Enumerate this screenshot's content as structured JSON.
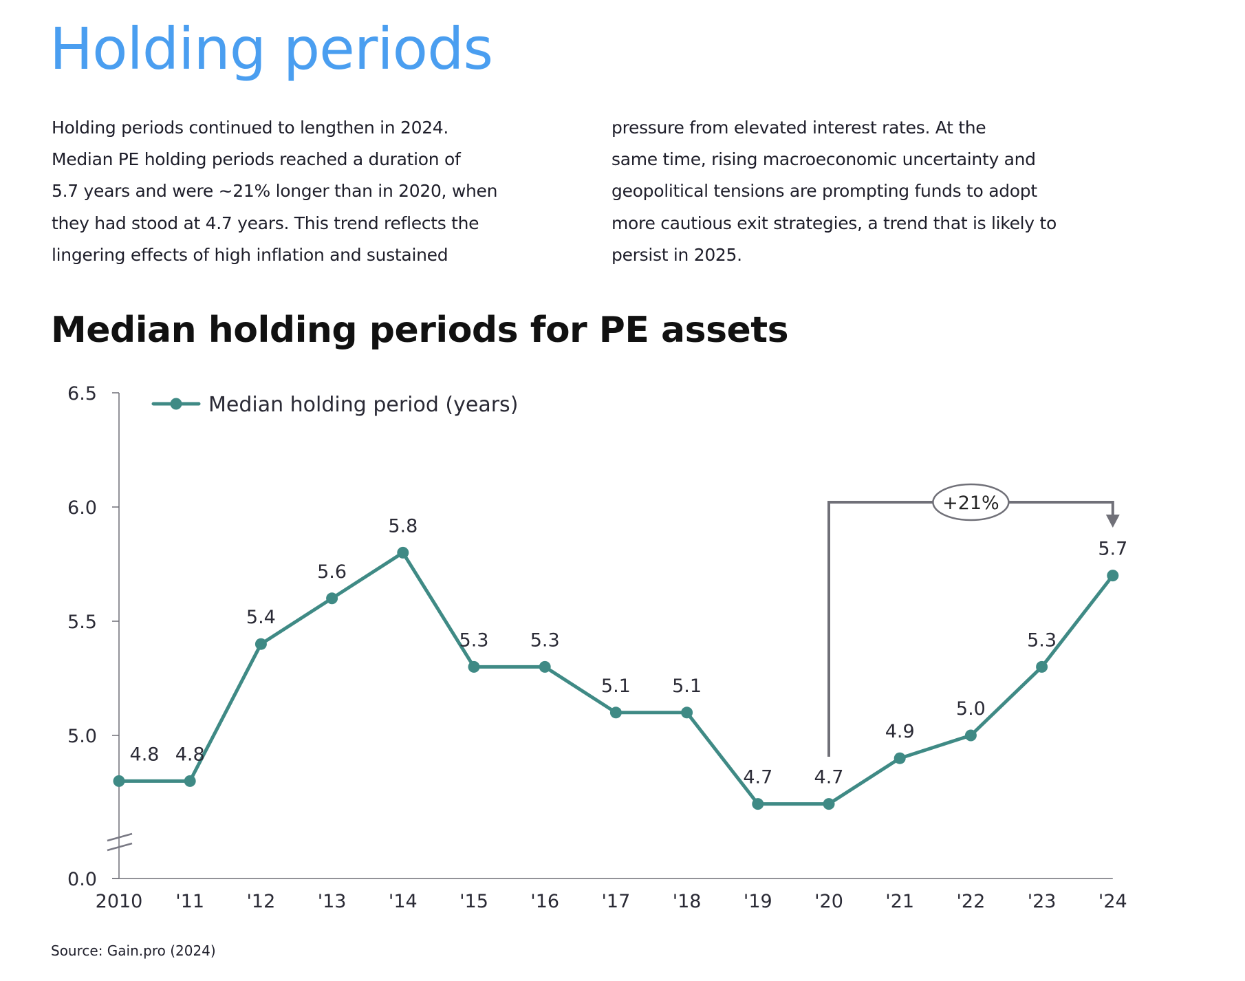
{
  "page": {
    "title": "Holding periods",
    "paragraph_left": [
      "Holding periods continued to lengthen in 2024.",
      "Median PE holding periods reached a duration of",
      "5.7 years and were ~21% longer than in 2020, when",
      "they had stood at 4.7 years. This trend reflects the",
      "lingering effects of high inflation and sustained"
    ],
    "paragraph_right": [
      "pressure from elevated interest rates. At the",
      "same time, rising macroeconomic uncertainty and",
      "geopolitical tensions are prompting funds to adopt",
      "more cautious exit strategies, a trend that is likely to",
      "persist in 2025."
    ],
    "source": "Source: Gain.pro (2024)"
  },
  "colors": {
    "title": "#4a9ef0",
    "series": "#3f8a85",
    "axis": "#6e6e76",
    "annotation": "#707078",
    "text": "#1e1e2a"
  },
  "chart_data": {
    "type": "line",
    "title": "Median holding periods for PE assets",
    "xlabel": "",
    "ylabel": "",
    "categories": [
      "2010",
      "'11",
      "'12",
      "'13",
      "'14",
      "'15",
      "'16",
      "'17",
      "'18",
      "'19",
      "'20",
      "'21",
      "'22",
      "'23",
      "'24"
    ],
    "series": [
      {
        "name": "Median holding period (years)",
        "values": [
          4.8,
          4.8,
          5.4,
          5.6,
          5.8,
          5.3,
          5.3,
          5.1,
          5.1,
          4.7,
          4.7,
          4.9,
          5.0,
          5.3,
          5.7
        ],
        "data_labels": [
          "4.8",
          "4.8",
          "5.4",
          "5.6",
          "5.8",
          "5.3",
          "5.3",
          "5.1",
          "5.1",
          "4.7",
          "4.7",
          "4.9",
          "5.0",
          "5.3",
          "5.7"
        ]
      }
    ],
    "yticks": [
      "0.0",
      "5.0",
      "5.5",
      "6.0",
      "6.5"
    ],
    "ytick_values": [
      0.0,
      5.0,
      5.5,
      6.0,
      6.5
    ],
    "ylim": [
      4.5,
      6.5
    ],
    "axis_break": true,
    "grid": false,
    "legend": "top-left",
    "annotation": {
      "label": "+21%",
      "from_category": "'20",
      "to_category": "'24",
      "type": "bracket-arrow"
    }
  }
}
